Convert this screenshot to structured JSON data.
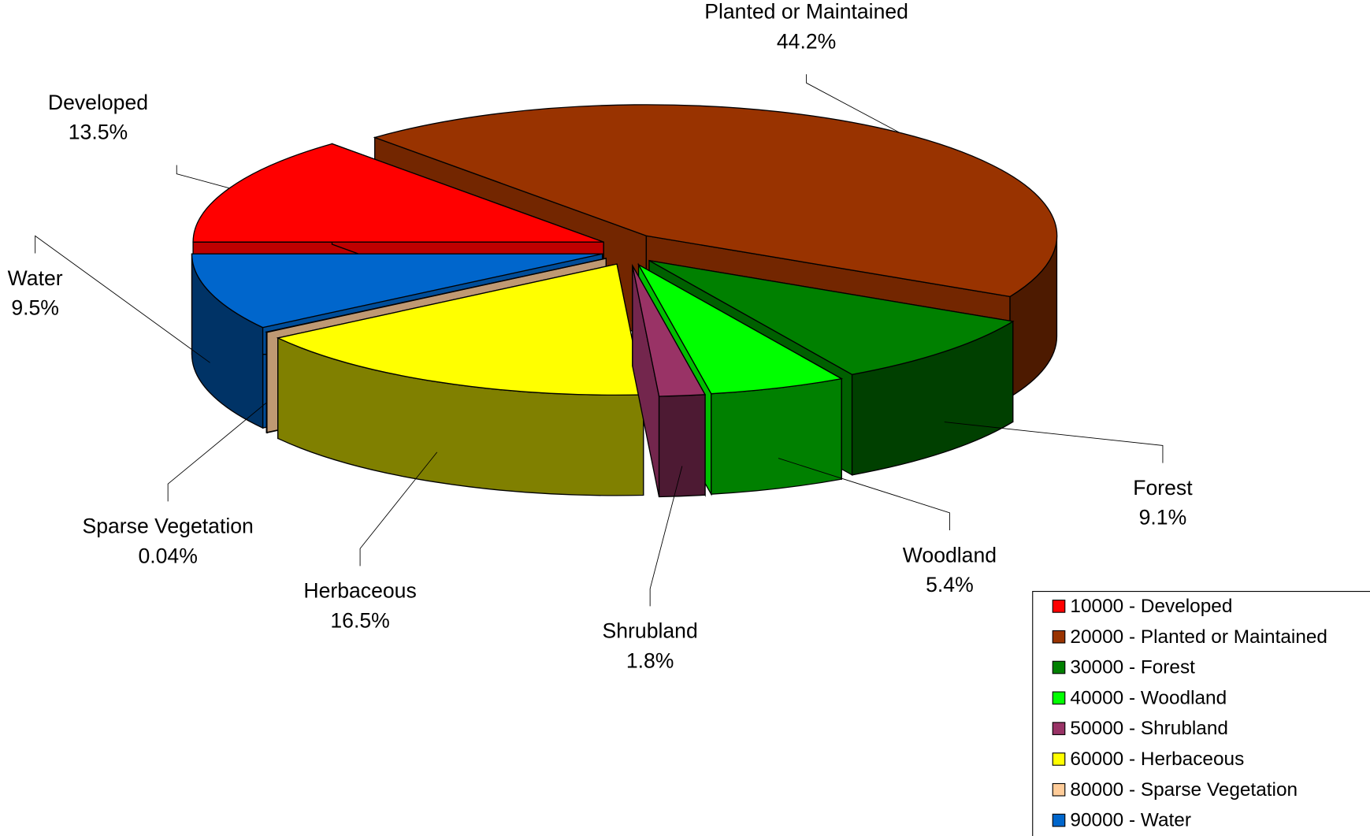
{
  "chart_data": {
    "type": "pie3d",
    "categories": [
      "Developed",
      "Planted or Maintained",
      "Forest",
      "Woodland",
      "Shrubland",
      "Herbaceous",
      "Sparse Vegetation",
      "Water"
    ],
    "values": [
      13.5,
      44.2,
      9.1,
      5.4,
      1.8,
      16.5,
      0.04,
      9.5
    ],
    "value_labels": [
      "13.5%",
      "44.2%",
      "9.1%",
      "5.4%",
      "1.8%",
      "16.5%",
      "0.04%",
      "9.5%"
    ],
    "colors": [
      "#ff0000",
      "#993300",
      "#008000",
      "#00ff00",
      "#993366",
      "#ffff00",
      "#ffcc99",
      "#0066cc"
    ],
    "legend": [
      "10000 - Developed",
      "20000 - Planted or Maintained",
      "30000 - Forest",
      "40000 - Woodland",
      "50000 - Shrubland",
      "60000 - Herbaceous",
      "80000 - Sparse Vegetation",
      "90000 - Water"
    ],
    "legend_position": "lower right"
  }
}
